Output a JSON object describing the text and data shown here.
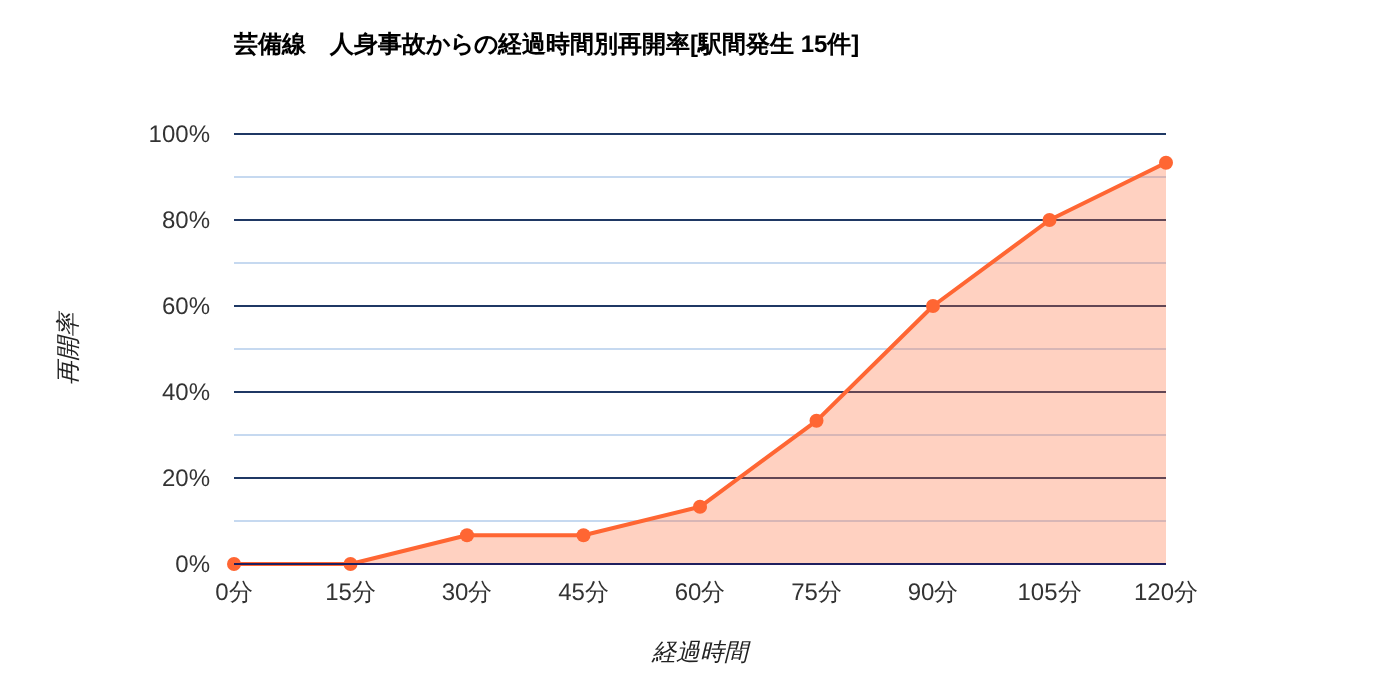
{
  "chart_data": {
    "type": "area",
    "title": "芸備線　人身事故からの経過時間別再開率[駅間発生 15件]",
    "xlabel": "経過時間",
    "ylabel": "再開率",
    "categories": [
      "0分",
      "15分",
      "30分",
      "45分",
      "60分",
      "75分",
      "90分",
      "105分",
      "120分"
    ],
    "series": [
      {
        "color": "#ff6633",
        "values": [
          0,
          0,
          6.7,
          6.7,
          13.3,
          33.3,
          60,
          80,
          93.3
        ]
      }
    ],
    "ylim": [
      0,
      100
    ],
    "yticks": [
      {
        "value": 0,
        "label": "0%"
      },
      {
        "value": 10,
        "label": null
      },
      {
        "value": 20,
        "label": "20%"
      },
      {
        "value": 30,
        "label": null
      },
      {
        "value": 40,
        "label": "40%"
      },
      {
        "value": 50,
        "label": null
      },
      {
        "value": 60,
        "label": "60%"
      },
      {
        "value": 70,
        "label": null
      },
      {
        "value": 80,
        "label": "80%"
      },
      {
        "value": 90,
        "label": null
      },
      {
        "value": 100,
        "label": "100%"
      }
    ],
    "grid": "y",
    "marker": "circle"
  }
}
